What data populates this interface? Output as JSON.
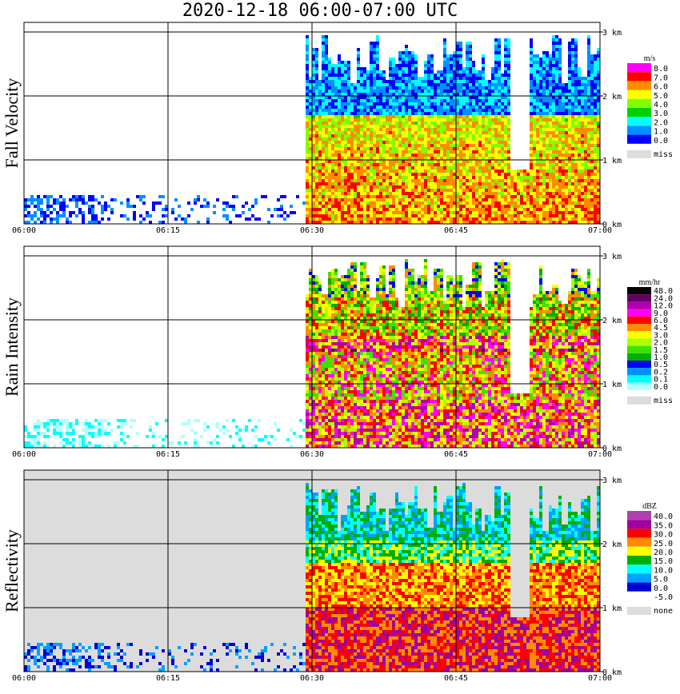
{
  "title": "2020-12-18   06:00-07:00 UTC",
  "chart_data": [
    {
      "type": "heatmap",
      "ylabel": "Fall Velocity",
      "units": "m/s",
      "xticks": [
        "06:00",
        "06:15",
        "06:30",
        "06:45",
        "07:00"
      ],
      "yticks": [
        "0 km",
        "1 km",
        "2 km",
        "3 km"
      ],
      "ylim": [
        0,
        3.2
      ],
      "legend": [
        {
          "label": "8.0",
          "color": "#ff00ff"
        },
        {
          "label": "7.0",
          "color": "#ff0000"
        },
        {
          "label": "6.0",
          "color": "#ff8c00"
        },
        {
          "label": "5.0",
          "color": "#ffff00"
        },
        {
          "label": "4.0",
          "color": "#80ff00"
        },
        {
          "label": "3.0",
          "color": "#00d000"
        },
        {
          "label": "2.0",
          "color": "#00ffff"
        },
        {
          "label": "1.0",
          "color": "#0090ff"
        },
        {
          "label": "0.0",
          "color": "#0000ff"
        },
        {
          "label": "miss",
          "color": "#dcdcdc"
        }
      ]
    },
    {
      "type": "heatmap",
      "ylabel": "Rain Intensity",
      "units": "mm/hr",
      "xticks": [
        "06:00",
        "06:15",
        "06:30",
        "06:45",
        "07:00"
      ],
      "yticks": [
        "0 km",
        "1 km",
        "2 km",
        "3 km"
      ],
      "ylim": [
        0,
        3.2
      ],
      "legend": [
        {
          "label": "48.0",
          "color": "#000000"
        },
        {
          "label": "24.0",
          "color": "#600060"
        },
        {
          "label": "12.0",
          "color": "#b000b0"
        },
        {
          "label": "9.0",
          "color": "#ff00ff"
        },
        {
          "label": "6.0",
          "color": "#ff0000"
        },
        {
          "label": "4.5",
          "color": "#ff8c00"
        },
        {
          "label": "3.0",
          "color": "#ffff00"
        },
        {
          "label": "2.0",
          "color": "#b0ff00"
        },
        {
          "label": "1.5",
          "color": "#40e000"
        },
        {
          "label": "1.0",
          "color": "#00b000"
        },
        {
          "label": "0.5",
          "color": "#0000ff"
        },
        {
          "label": "0.2",
          "color": "#0090ff"
        },
        {
          "label": "0.1",
          "color": "#00ffff"
        },
        {
          "label": "0.0",
          "color": "#b0ffff"
        },
        {
          "label": "miss",
          "color": "#dcdcdc"
        }
      ]
    },
    {
      "type": "heatmap",
      "ylabel": "Reflectivity",
      "units": "dBZ",
      "xticks": [
        "06:00",
        "06:15",
        "06:30",
        "06:45",
        "07:00"
      ],
      "yticks": [
        "0 km",
        "1 km",
        "2 km",
        "3 km"
      ],
      "ylim": [
        0,
        3.2
      ],
      "legend": [
        {
          "label": "40.0",
          "color": "#b040b0"
        },
        {
          "label": "35.0",
          "color": "#a000a0"
        },
        {
          "label": "30.0",
          "color": "#ff0000"
        },
        {
          "label": "25.0",
          "color": "#ff8c00"
        },
        {
          "label": "20.0",
          "color": "#ffff00"
        },
        {
          "label": "15.0",
          "color": "#00b000"
        },
        {
          "label": "10.0",
          "color": "#00ffff"
        },
        {
          "label": "5.0",
          "color": "#00a0ff"
        },
        {
          "label": "0.0",
          "color": "#0000d0"
        },
        {
          "label": "-5.0",
          "color": "#ffffff"
        },
        {
          "label": "none",
          "color": "#dcdcdc"
        }
      ]
    }
  ]
}
